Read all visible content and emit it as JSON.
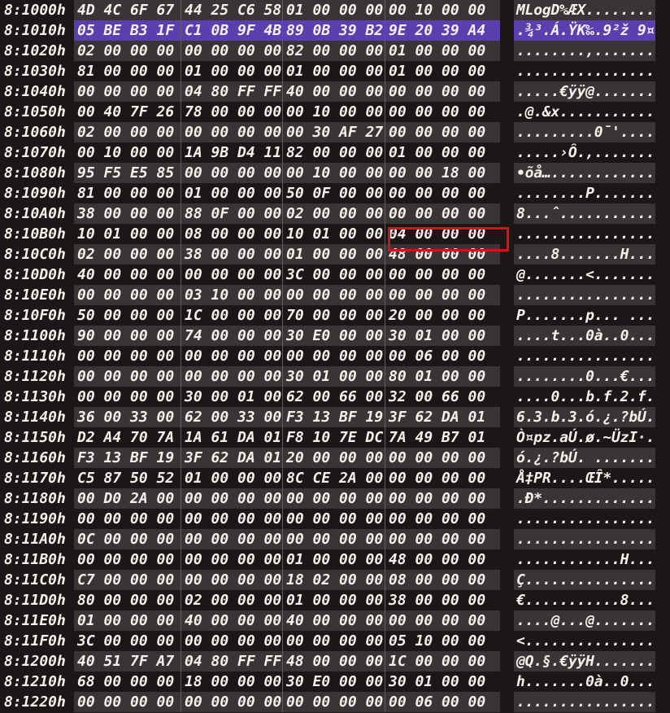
{
  "colors": {
    "background": "#1b1717",
    "row_stripe": "#3a3535",
    "selection": "#5b3fae",
    "marker_red": "#d51318",
    "group_divider": "#615c5c",
    "text": "#f4f1ee"
  },
  "selection": {
    "address": "8:1010h"
  },
  "red_box": {
    "address": "8:10B0h",
    "group_index": 3,
    "bytes": "04 00 00 00"
  },
  "rows": [
    {
      "addr": "8:1000h",
      "groups": [
        "4D 4C 6F 67",
        "44 25 C6 58",
        "01 00 00 00",
        "00 10 00 00"
      ],
      "ascii": "MLogD%ÆX........"
    },
    {
      "addr": "8:1010h",
      "groups": [
        "05 BE B3 1F",
        "C1 0B 9F 4B",
        "89 0B 39 B2",
        "9E 20 39 A4"
      ],
      "ascii": ".¾³.Á.ŸK‰.9²ž 9¤"
    },
    {
      "addr": "8:1020h",
      "groups": [
        "02 00 00 00",
        "00 00 00 00",
        "82 00 00 00",
        "01 00 00 00"
      ],
      "ascii": "........‚......."
    },
    {
      "addr": "8:1030h",
      "groups": [
        "81 00 00 00",
        "01 00 00 00",
        "01 00 00 00",
        "01 00 00 00"
      ],
      "ascii": "................"
    },
    {
      "addr": "8:1040h",
      "groups": [
        "00 00 00 00",
        "04 80 FF FF",
        "40 00 00 00",
        "00 00 00 00"
      ],
      "ascii": ".....€ÿÿ@......."
    },
    {
      "addr": "8:1050h",
      "groups": [
        "00 40 7F 26",
        "78 00 00 00",
        "00 10 00 00",
        "00 00 00 00"
      ],
      "ascii": ".@.&x..........."
    },
    {
      "addr": "8:1060h",
      "groups": [
        "02 00 00 00",
        "00 00 00 00",
        "00 30 AF 27",
        "00 00 00 00"
      ],
      "ascii": ".........0¯'...."
    },
    {
      "addr": "8:1070h",
      "groups": [
        "00 10 00 00",
        "1A 9B D4 11",
        "82 00 00 00",
        "01 00 00 00"
      ],
      "ascii": ".....›Ô.‚......."
    },
    {
      "addr": "8:1080h",
      "groups": [
        "95 F5 E5 85",
        "00 00 00 00",
        "00 10 00 00",
        "00 00 18 00"
      ],
      "ascii": "•õå…............"
    },
    {
      "addr": "8:1090h",
      "groups": [
        "81 00 00 00",
        "01 00 00 00",
        "50 0F 00 00",
        "00 00 00 00"
      ],
      "ascii": "........P......."
    },
    {
      "addr": "8:10A0h",
      "groups": [
        "38 00 00 00",
        "88 0F 00 00",
        "02 00 00 00",
        "00 00 00 00"
      ],
      "ascii": "8...ˆ..........."
    },
    {
      "addr": "8:10B0h",
      "groups": [
        "10 01 00 00",
        "08 00 00 00",
        "10 01 00 00",
        "04 00 00 00"
      ],
      "ascii": "................"
    },
    {
      "addr": "8:10C0h",
      "groups": [
        "02 00 00 00",
        "38 00 00 00",
        "01 00 00 00",
        "48 00 00 00"
      ],
      "ascii": "....8.......H..."
    },
    {
      "addr": "8:10D0h",
      "groups": [
        "40 00 00 00",
        "00 00 00 00",
        "3C 00 00 00",
        "00 00 00 00"
      ],
      "ascii": "@.......<......."
    },
    {
      "addr": "8:10E0h",
      "groups": [
        "00 00 00 00",
        "03 10 00 00",
        "00 00 00 00",
        "00 00 00 00"
      ],
      "ascii": "................"
    },
    {
      "addr": "8:10F0h",
      "groups": [
        "50 00 00 00",
        "1C 00 00 00",
        "70 00 00 00",
        "20 00 00 00"
      ],
      "ascii": "P.......p... ..."
    },
    {
      "addr": "8:1100h",
      "groups": [
        "90 00 00 00",
        "74 00 00 00",
        "30 E0 00 00",
        "30 01 00 00"
      ],
      "ascii": "....t...0à..0..."
    },
    {
      "addr": "8:1110h",
      "groups": [
        "00 00 00 00",
        "00 00 00 00",
        "00 00 00 00",
        "00 06 00 00"
      ],
      "ascii": "................"
    },
    {
      "addr": "8:1120h",
      "groups": [
        "00 00 00 00",
        "00 00 00 00",
        "30 01 00 00",
        "80 01 00 00"
      ],
      "ascii": "........0...€..."
    },
    {
      "addr": "8:1130h",
      "groups": [
        "00 00 00 00",
        "30 00 01 00",
        "62 00 66 00",
        "32 00 66 00"
      ],
      "ascii": "....0...b.f.2.f."
    },
    {
      "addr": "8:1140h",
      "groups": [
        "36 00 33 00",
        "62 00 33 00",
        "F3 13 BF 19",
        "3F 62 DA 01"
      ],
      "ascii": "6.3.b.3.ó.¿.?bÚ."
    },
    {
      "addr": "8:1150h",
      "groups": [
        "D2 A4 70 7A",
        "1A 61 DA 01",
        "F8 10 7E DC",
        "7A 49 B7 01"
      ],
      "ascii": "Ò¤pz.aÚ.ø.~ÜzI·."
    },
    {
      "addr": "8:1160h",
      "groups": [
        "F3 13 BF 19",
        "3F 62 DA 01",
        "20 00 00 00",
        "00 00 00 00"
      ],
      "ascii": "ó.¿.?bÚ. ......."
    },
    {
      "addr": "8:1170h",
      "groups": [
        "C5 87 50 52",
        "01 00 00 00",
        "8C CE 2A 00",
        "00 00 00 00"
      ],
      "ascii": "Å‡PR....ŒÎ*....."
    },
    {
      "addr": "8:1180h",
      "groups": [
        "00 D0 2A 00",
        "00 00 00 00",
        "00 00 00 00",
        "00 00 00 00"
      ],
      "ascii": ".Ð*............."
    },
    {
      "addr": "8:1190h",
      "groups": [
        "00 00 00 00",
        "00 00 00 00",
        "00 00 00 00",
        "00 00 00 00"
      ],
      "ascii": "................"
    },
    {
      "addr": "8:11A0h",
      "groups": [
        "0C 00 00 00",
        "00 00 00 00",
        "00 00 00 00",
        "00 00 00 00"
      ],
      "ascii": "................"
    },
    {
      "addr": "8:11B0h",
      "groups": [
        "00 00 00 00",
        "00 00 00 00",
        "01 00 00 00",
        "48 00 00 00"
      ],
      "ascii": "............H..."
    },
    {
      "addr": "8:11C0h",
      "groups": [
        "C7 00 00 00",
        "00 00 00 00",
        "18 02 00 00",
        "08 00 00 00"
      ],
      "ascii": "Ç..............."
    },
    {
      "addr": "8:11D0h",
      "groups": [
        "80 00 00 00",
        "02 00 00 00",
        "01 00 00 00",
        "38 00 00 00"
      ],
      "ascii": "€...........8..."
    },
    {
      "addr": "8:11E0h",
      "groups": [
        "01 00 00 00",
        "40 00 00 00",
        "40 00 00 00",
        "00 00 00 00"
      ],
      "ascii": "....@...@......."
    },
    {
      "addr": "8:11F0h",
      "groups": [
        "3C 00 00 00",
        "00 00 00 00",
        "00 00 00 00",
        "05 10 00 00"
      ],
      "ascii": "<..............."
    },
    {
      "addr": "8:1200h",
      "groups": [
        "40 51 7F A7",
        "04 80 FF FF",
        "48 00 00 00",
        "1C 00 00 00"
      ],
      "ascii": "@Q.§.€ÿÿH......."
    },
    {
      "addr": "8:1210h",
      "groups": [
        "68 00 00 00",
        "18 00 00 00",
        "30 E0 00 00",
        "30 01 00 00"
      ],
      "ascii": "h.......0à..0..."
    },
    {
      "addr": "8:1220h",
      "groups": [
        "00 00 00 00",
        "00 00 00 00",
        "00 00 00 00",
        "00 06 00 00"
      ],
      "ascii": "................"
    }
  ]
}
